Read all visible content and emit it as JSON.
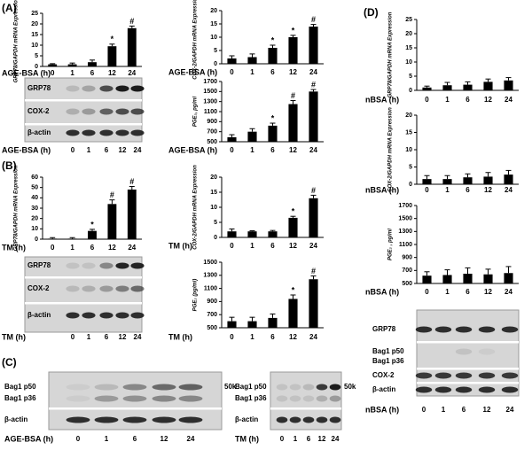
{
  "panels": [
    "(A)",
    "(B)",
    "(C)",
    "(D)"
  ],
  "chart_data": [
    {
      "type": "bar",
      "y_label": "GRP78/GAPDH mRNA Expression",
      "x_label": "AGE-BSA (h)",
      "categories": [
        "0",
        "1",
        "6",
        "12",
        "24"
      ],
      "values": [
        1,
        1,
        2,
        9.5,
        18
      ],
      "errors": [
        0.3,
        0.6,
        1,
        1,
        1
      ],
      "markers": [
        null,
        null,
        null,
        "*",
        "#"
      ],
      "color": "#000000",
      "ylim": [
        0,
        25
      ],
      "yticks": [
        0,
        5,
        10,
        15,
        20,
        25
      ]
    },
    {
      "type": "bar",
      "y_label": "COX-2/GAPDH mRNA Expression",
      "x_label": "AGE-BSA (h)",
      "categories": [
        "0",
        "1",
        "6",
        "12",
        "24"
      ],
      "values": [
        2,
        2.5,
        6,
        10,
        14
      ],
      "errors": [
        1,
        1.2,
        1,
        0.7,
        0.8
      ],
      "markers": [
        null,
        null,
        "*",
        "*",
        "#"
      ],
      "color": "#000000",
      "ylim": [
        0,
        20
      ],
      "yticks": [
        0,
        5,
        10,
        15,
        20
      ]
    },
    {
      "type": "bar",
      "y_label": "PGE₂, pg/ml",
      "x_label": "AGE-BSA (h)",
      "categories": [
        "0",
        "1",
        "6",
        "12",
        "24"
      ],
      "values": [
        590,
        700,
        820,
        1250,
        1500
      ],
      "errors": [
        50,
        60,
        50,
        70,
        40
      ],
      "markers": [
        null,
        null,
        "*",
        "#",
        "#"
      ],
      "color": "#000000",
      "ylim": [
        500,
        1700
      ],
      "yticks": [
        500,
        700,
        900,
        1100,
        1300,
        1500,
        1700
      ]
    },
    {
      "type": "bar",
      "y_label": "GRP78/GAPDH mRNA Expression",
      "x_label": "TM (h)",
      "categories": [
        "0",
        "1",
        "6",
        "12",
        "24"
      ],
      "values": [
        0.5,
        0.5,
        8,
        34,
        48
      ],
      "errors": [
        1,
        1,
        1.5,
        4,
        3
      ],
      "markers": [
        null,
        null,
        "*",
        "#",
        "#"
      ],
      "color": "#000000",
      "ylim": [
        0,
        60
      ],
      "yticks": [
        0,
        10,
        20,
        30,
        40,
        50,
        60
      ]
    },
    {
      "type": "bar",
      "y_label": "COX-2/GAPDH mRNA Expression",
      "x_label": "TM (h)",
      "categories": [
        "0",
        "1",
        "6",
        "12",
        "24"
      ],
      "values": [
        2,
        2,
        2,
        6.5,
        13
      ],
      "errors": [
        0.8,
        0.2,
        0.3,
        0.5,
        1
      ],
      "markers": [
        null,
        null,
        null,
        "*",
        "#"
      ],
      "color": "#000000",
      "ylim": [
        0,
        20
      ],
      "yticks": [
        0,
        5,
        10,
        15,
        20
      ]
    },
    {
      "type": "bar",
      "y_label": "PGE₂ (pg/ml)",
      "x_label": "TM (h)",
      "categories": [
        "0",
        "1",
        "6",
        "12",
        "24"
      ],
      "values": [
        600,
        600,
        650,
        940,
        1240
      ],
      "errors": [
        60,
        60,
        60,
        60,
        50
      ],
      "markers": [
        null,
        null,
        null,
        "*",
        "#"
      ],
      "color": "#000000",
      "ylim": [
        500,
        1500
      ],
      "yticks": [
        500,
        700,
        900,
        1100,
        1300,
        1500
      ]
    },
    {
      "type": "bar",
      "y_label": "GRP78/GAPDH mRNA Expression",
      "x_label": "nBSA (h)",
      "categories": [
        "0",
        "1",
        "6",
        "12",
        "24"
      ],
      "values": [
        1,
        1.8,
        2,
        3,
        3.5
      ],
      "errors": [
        0.5,
        1,
        1,
        1,
        1
      ],
      "markers": [
        null,
        null,
        null,
        null,
        null
      ],
      "color": "#000000",
      "ylim": [
        0,
        25
      ],
      "yticks": [
        0,
        5,
        10,
        15,
        20,
        25
      ]
    },
    {
      "type": "bar",
      "y_label": "COX-2/GAPDH mRNA Expression",
      "x_label": "nBSA (h)",
      "categories": [
        "0",
        "1",
        "6",
        "12",
        "24"
      ],
      "values": [
        1.5,
        1.5,
        2,
        2.2,
        2.8
      ],
      "errors": [
        1,
        1,
        1,
        1.2,
        1.2
      ],
      "markers": [
        null,
        null,
        null,
        null,
        null
      ],
      "color": "#000000",
      "ylim": [
        0,
        20
      ],
      "yticks": [
        0,
        5,
        10,
        15,
        20
      ]
    },
    {
      "type": "bar",
      "y_label": "PGE₂ , pg/ml",
      "x_label": "nBSA (h)",
      "categories": [
        "0",
        "1",
        "6",
        "12",
        "24"
      ],
      "values": [
        620,
        630,
        650,
        640,
        660
      ],
      "errors": [
        60,
        80,
        90,
        80,
        100
      ],
      "markers": [
        null,
        null,
        null,
        null,
        null
      ],
      "color": "#000000",
      "ylim": [
        500,
        1700
      ],
      "yticks": [
        500,
        700,
        900,
        1100,
        1300,
        1500,
        1700
      ]
    }
  ],
  "blots": [
    {
      "rows": [
        "GRP78",
        "COX-2",
        "β-actin"
      ],
      "x_label": "AGE-BSA (h)",
      "categories": [
        "0",
        "1",
        "6",
        "12",
        "24"
      ]
    },
    {
      "rows": [
        "GRP78",
        "COX-2",
        "β-actin"
      ],
      "x_label": "TM (h)",
      "categories": [
        "0",
        "1",
        "6",
        "12",
        "24"
      ]
    },
    {
      "rows": [
        "Bag1 p50",
        "Bag1 p36",
        "β-actin"
      ],
      "size_marker": "50k",
      "x_label": "AGE-BSA (h)",
      "categories": [
        "0",
        "1",
        "6",
        "12",
        "24"
      ]
    },
    {
      "rows": [
        "Bag1 p50",
        "Bag1 p36",
        "β-actin"
      ],
      "size_marker": "50k",
      "x_label": "TM (h)",
      "categories": [
        "0",
        "1",
        "6",
        "12",
        "24"
      ]
    },
    {
      "rows": [
        "GRP78",
        "Bag1 p50",
        "Bag1 p36",
        "COX-2",
        "β-actin"
      ],
      "x_label": "nBSA (h)",
      "categories": [
        "0",
        "1",
        "6",
        "12",
        "24"
      ]
    }
  ]
}
